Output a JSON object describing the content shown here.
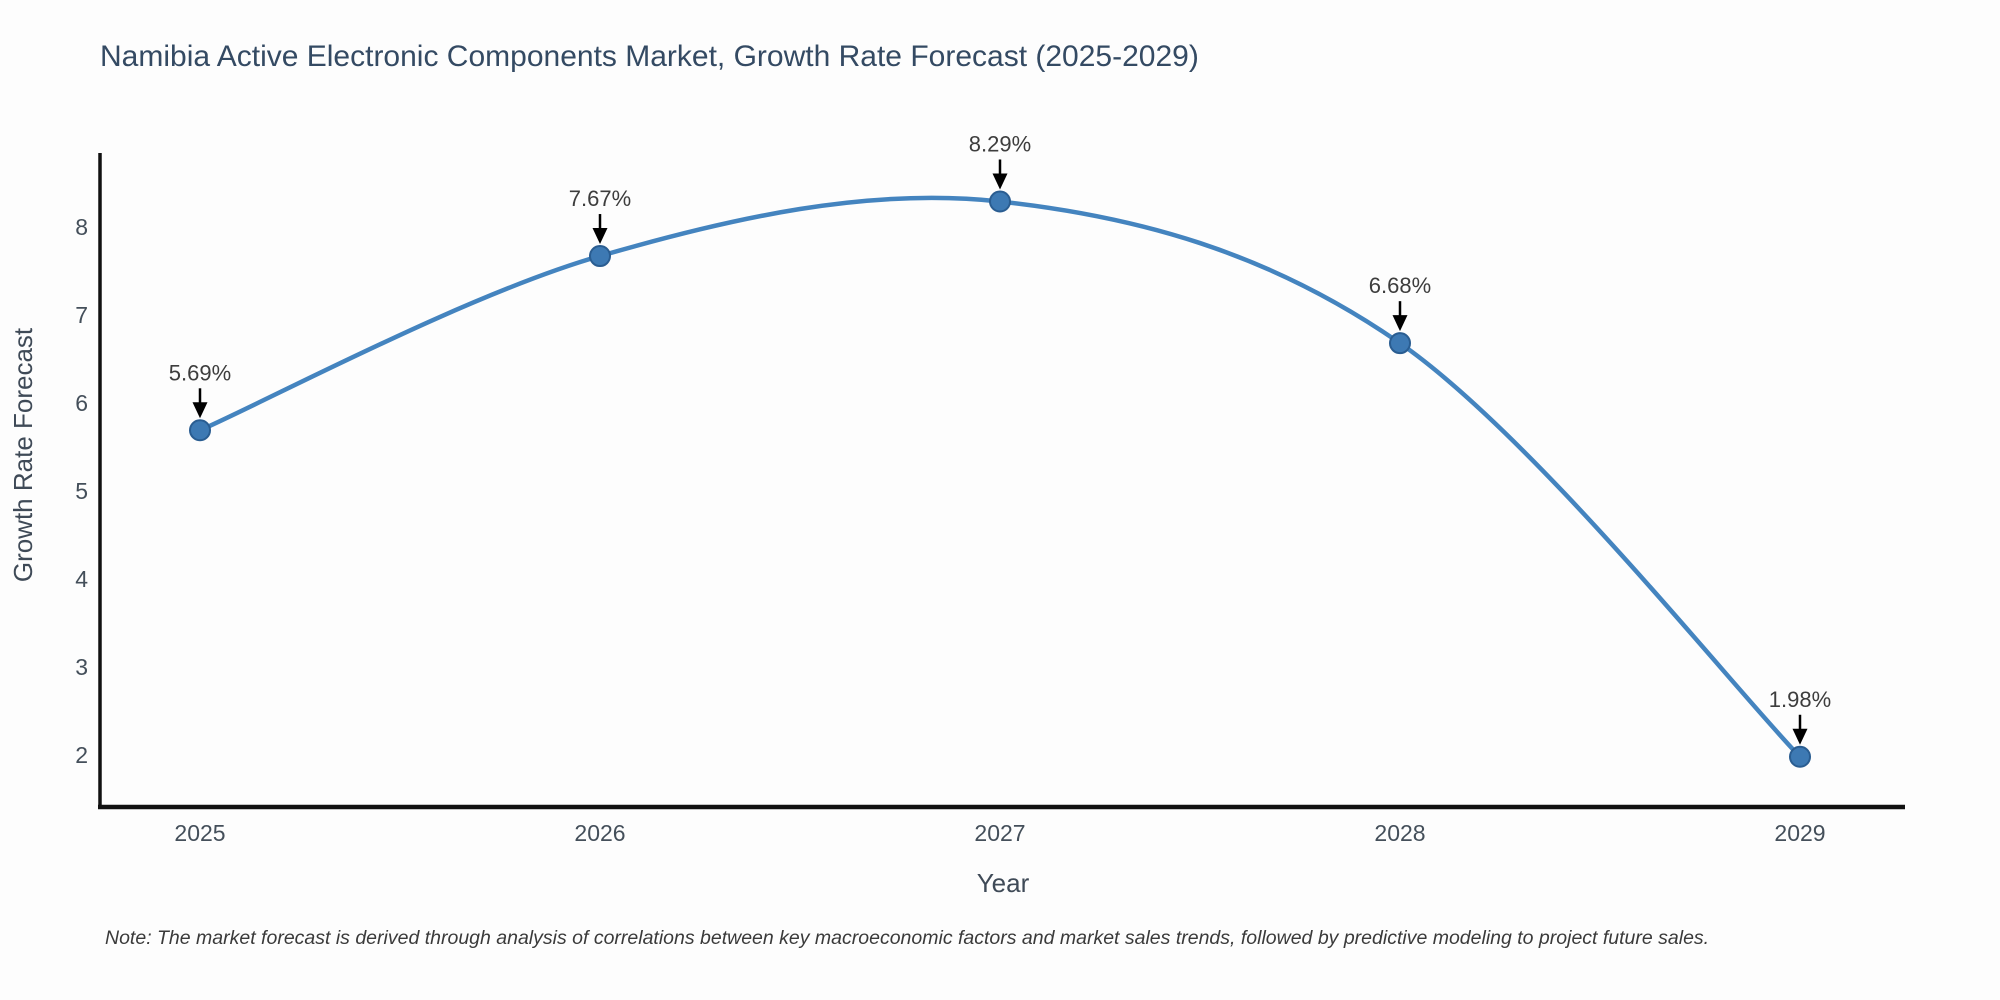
{
  "chart": {
    "title": "Namibia Active Electronic Components Market, Growth Rate Forecast (2025-2029)",
    "xlabel": "Year",
    "ylabel": "Growth Rate Forecast",
    "note": "Note: The market forecast is derived through analysis of correlations between key macroeconomic factors and market sales trends, followed by predictive modeling to project future sales."
  },
  "chart_data": {
    "type": "line",
    "title": "Namibia Active Electronic Components Market, Growth Rate Forecast (2025-2029)",
    "xlabel": "Year",
    "ylabel": "Growth Rate Forecast",
    "x": [
      2025,
      2026,
      2027,
      2028,
      2029
    ],
    "values": [
      5.69,
      7.67,
      8.29,
      6.68,
      1.98
    ],
    "point_labels": [
      "5.69%",
      "7.67%",
      "8.29%",
      "6.68%",
      "1.98%"
    ],
    "yticks": [
      2,
      3,
      4,
      5,
      6,
      7,
      8
    ],
    "ylim": [
      1.4,
      8.85
    ],
    "line_shape": "spline",
    "grid": false,
    "legend": "none",
    "annotations": "black arrows pointing down from percent labels to markers",
    "note": "Note: The market forecast is derived through analysis of correlations between key macroeconomic factors and market sales trends, followed by predictive modeling to project future sales.",
    "colors": {
      "line": "#4484bf",
      "marker": "#3d79b3",
      "marker_edge": "#2a5d91",
      "arrow": "#000000",
      "axis": "#111111",
      "title_text": "#344a63",
      "tick_text": "#444f5a",
      "annotation_text": "#3d3d3d",
      "background": "#fdfdfd"
    }
  }
}
